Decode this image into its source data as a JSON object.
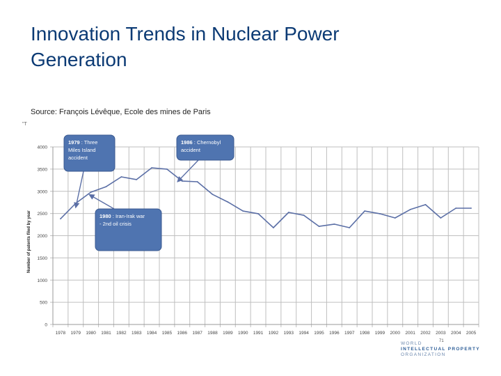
{
  "slide": {
    "title_line1": "Innovation Trends in Nuclear Power",
    "title_line2": "Generation",
    "source": "Source:  François Lévêque, Ecole des mines de Paris",
    "corner_marker": "\"T",
    "page_number": "71",
    "logo": {
      "line1": "WORLD",
      "line2": "INTELLECTUAL PROPERTY",
      "line3": "ORGANIZATION"
    }
  },
  "colors": {
    "title": "#0b3a74",
    "line": "#5b6fa6",
    "callout_fill": "#4f74b0",
    "callout_stroke": "#3b5a90",
    "grid": "#bfbfbf",
    "arrow": "#5b6fa6"
  },
  "chart_data": {
    "type": "line",
    "title": "",
    "xlabel": "",
    "ylabel": "Number of patents filed by year",
    "ylim": [
      0,
      4000
    ],
    "yticks": [
      0,
      500,
      1000,
      1500,
      2000,
      2500,
      3000,
      3500,
      4000
    ],
    "grid": true,
    "legend": "none",
    "x": [
      "1978",
      "1979",
      "1980",
      "1981",
      "1982",
      "1983",
      "1984",
      "1985",
      "1986",
      "1987",
      "1988",
      "1989",
      "1990",
      "1991",
      "1992",
      "1993",
      "1994",
      "1995",
      "1996",
      "1997",
      "1998",
      "1999",
      "2000",
      "2001",
      "2002",
      "2003",
      "2004",
      "2005"
    ],
    "series": [
      {
        "name": "Patents filed",
        "values": [
          2380,
          2730,
          2980,
          3105,
          3325,
          3265,
          3530,
          3500,
          3230,
          3215,
          2930,
          2760,
          2555,
          2495,
          2180,
          2525,
          2460,
          2210,
          2260,
          2180,
          2555,
          2495,
          2400,
          2590,
          2700,
          2400,
          2620,
          2620
        ]
      }
    ],
    "annotations": [
      {
        "year": "1979",
        "bold": "1979",
        "text": " : Three Miles Island accident",
        "lines": [
          "1979 : Three",
          "Miles Island",
          "accident"
        ]
      },
      {
        "year": "1986",
        "bold": "1986",
        "text": " : Chernobyl accident",
        "lines": [
          "1986 : Chernobyl",
          "accident"
        ]
      },
      {
        "year": "1980",
        "bold": "1980",
        "text": " : Iran-Irak war - 2nd oil crisis",
        "lines": [
          "1980 : Iran-Irak war",
          "- 2nd oil crisis"
        ]
      }
    ]
  }
}
